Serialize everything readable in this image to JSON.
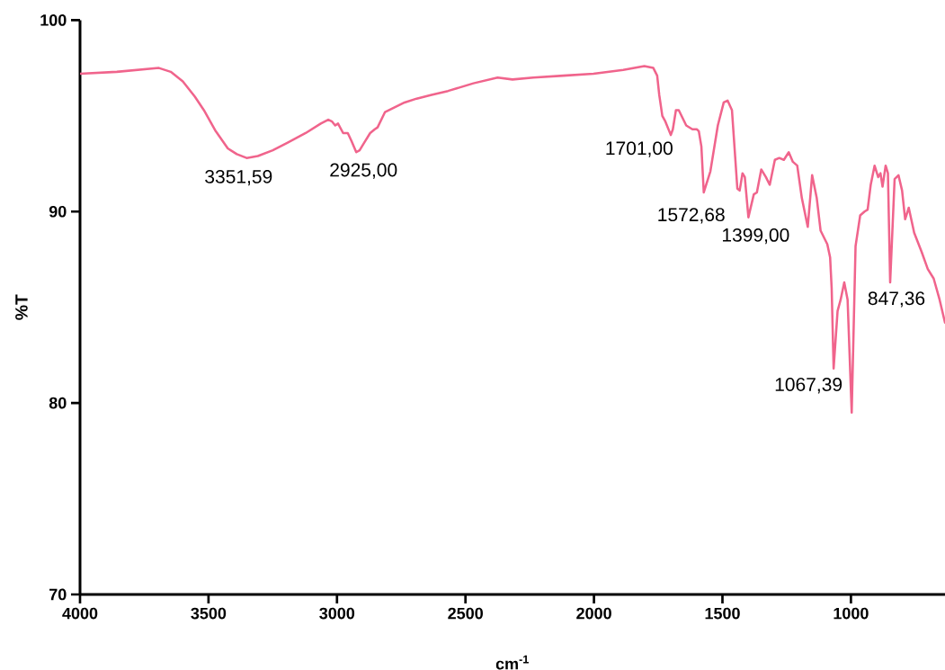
{
  "chart_data": {
    "type": "line",
    "xlabel": "cm$^{-1}$",
    "ylabel": "%T",
    "x": [
      4000,
      3857,
      3693,
      3647,
      3600,
      3553,
      3518,
      3472,
      3425,
      3390,
      3351.59,
      3308,
      3250,
      3192,
      3122,
      3063,
      3034,
      3019,
      3007,
      2996,
      2976,
      2958,
      2944,
      2925,
      2912,
      2894,
      2871,
      2853,
      2842,
      2813,
      2783,
      2737,
      2690,
      2632,
      2568,
      2469,
      2375,
      2317,
      2236,
      2119,
      2002,
      1886,
      1804,
      1769,
      1754,
      1746,
      1734,
      1722,
      1701,
      1693,
      1681,
      1670,
      1641,
      1617,
      1600,
      1592,
      1582,
      1572.68,
      1547,
      1518,
      1495,
      1480,
      1463,
      1442,
      1433,
      1422,
      1413,
      1399,
      1378,
      1366,
      1349,
      1331,
      1316,
      1296,
      1279,
      1261,
      1242,
      1226,
      1209,
      1191,
      1168,
      1151,
      1133,
      1118,
      1092,
      1081,
      1075,
      1067.39,
      1052,
      1040,
      1026,
      1013,
      997,
      982,
      964,
      947,
      935,
      923,
      908,
      894,
      885,
      877,
      865,
      856,
      847.36,
      830,
      815,
      801,
      789,
      775,
      754,
      725,
      701,
      678,
      655,
      634
    ],
    "series": [
      {
        "color": "#f0648c",
        "values": [
          97.2,
          97.3,
          97.5,
          97.3,
          96.8,
          96.0,
          95.3,
          94.2,
          93.3,
          93.0,
          92.8,
          92.9,
          93.2,
          93.6,
          94.1,
          94.6,
          94.8,
          94.7,
          94.5,
          94.6,
          94.1,
          94.1,
          93.7,
          93.1,
          93.2,
          93.6,
          94.1,
          94.3,
          94.4,
          95.2,
          95.4,
          95.7,
          95.9,
          96.1,
          96.3,
          96.7,
          97.0,
          96.9,
          97.0,
          97.1,
          97.2,
          97.4,
          97.6,
          97.5,
          97.1,
          96.1,
          95.0,
          94.7,
          94.0,
          94.3,
          95.3,
          95.3,
          94.5,
          94.3,
          94.3,
          94.2,
          93.4,
          91.0,
          92.1,
          94.5,
          95.7,
          95.8,
          95.3,
          91.2,
          91.1,
          92.0,
          91.8,
          89.7,
          90.9,
          91.0,
          92.2,
          91.8,
          91.4,
          92.7,
          92.8,
          92.7,
          93.1,
          92.6,
          92.4,
          90.7,
          89.2,
          91.9,
          90.7,
          89.0,
          88.3,
          87.6,
          86.0,
          81.8,
          84.8,
          85.4,
          86.3,
          85.4,
          79.5,
          88.2,
          89.8,
          90.0,
          90.1,
          91.4,
          92.4,
          91.8,
          92.0,
          91.3,
          92.4,
          92.0,
          86.3,
          91.7,
          91.9,
          91.1,
          89.6,
          90.2,
          88.9,
          87.9,
          87.0,
          86.5,
          85.4,
          84.2
        ]
      }
    ],
    "xlim": [
      4000,
      634
    ],
    "ylim": [
      70,
      100
    ],
    "xticks": [
      4000,
      3500,
      3000,
      2500,
      2000,
      1500,
      1000
    ],
    "yticks": [
      70,
      80,
      90,
      100
    ],
    "annotations": [
      {
        "text": "3351,59",
        "x": 3351.59,
        "y": 92.8
      },
      {
        "text": "2925,00",
        "x": 2925,
        "y": 93.1
      },
      {
        "text": "1701,00",
        "x": 1701,
        "y": 94.0
      },
      {
        "text": "1572,68",
        "x": 1572.68,
        "y": 91.0
      },
      {
        "text": "1399,00",
        "x": 1399,
        "y": 89.7
      },
      {
        "text": "1067,39",
        "x": 1067.39,
        "y": 81.8
      },
      {
        "text": "847,36",
        "x": 847.36,
        "y": 86.3
      }
    ]
  }
}
